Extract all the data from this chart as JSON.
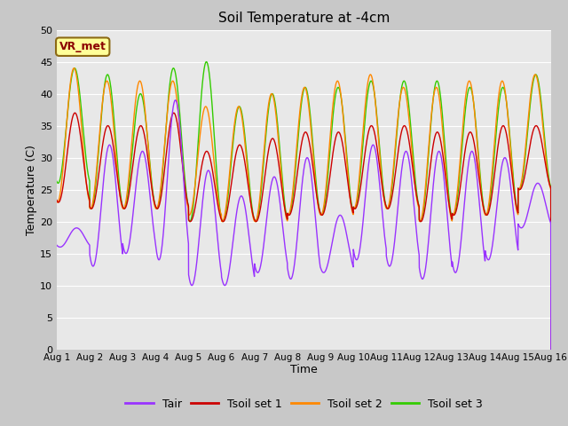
{
  "title": "Soil Temperature at -4cm",
  "xlabel": "Time",
  "ylabel": "Temperature (C)",
  "ylim": [
    0,
    50
  ],
  "yticks": [
    0,
    5,
    10,
    15,
    20,
    25,
    30,
    35,
    40,
    45,
    50
  ],
  "xtick_labels": [
    "Aug 1",
    "Aug 2",
    "Aug 3",
    "Aug 4",
    "Aug 5",
    "Aug 6",
    "Aug 7",
    "Aug 8",
    "Aug 9",
    "Aug 10",
    "Aug 11",
    "Aug 12",
    "Aug 13",
    "Aug 14",
    "Aug 15",
    "Aug 16"
  ],
  "annotation_text": "VR_met",
  "annotation_color": "#8B0000",
  "annotation_bg": "#FFFF99",
  "plot_bg": "#E8E8E8",
  "fig_bg": "#C8C8C8",
  "line_colors": {
    "Tair": "#9933FF",
    "Tsoil1": "#CC0000",
    "Tsoil2": "#FF8800",
    "Tsoil3": "#33CC00"
  },
  "legend_labels": [
    "Tair",
    "Tsoil set 1",
    "Tsoil set 2",
    "Tsoil set 3"
  ],
  "n_days": 15
}
